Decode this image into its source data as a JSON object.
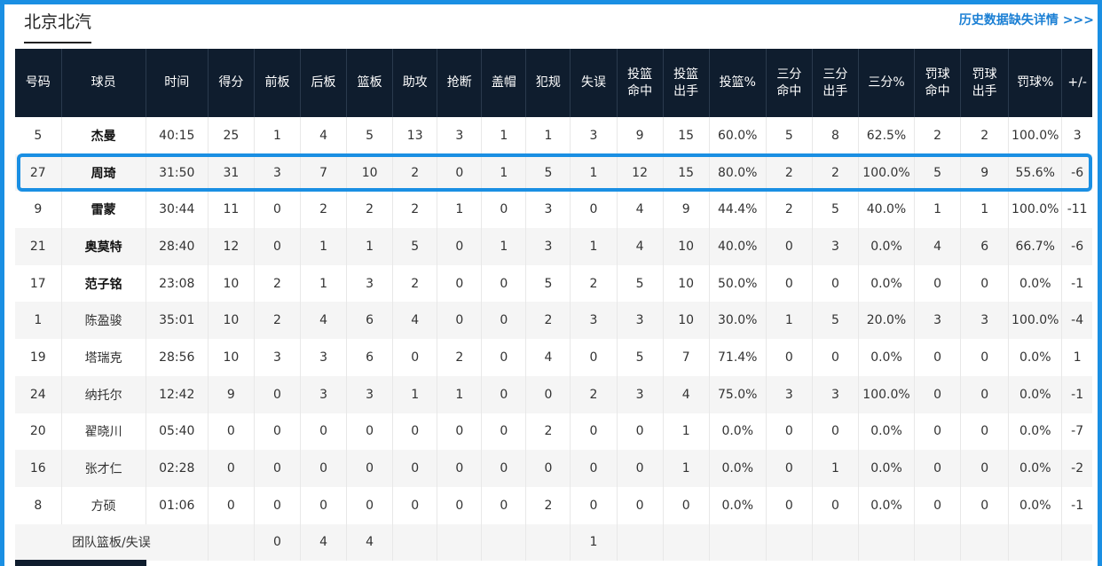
{
  "team": {
    "name": "北京北汽"
  },
  "history_link": {
    "label": "历史数据缺失详情 >>>"
  },
  "table": {
    "headers": [
      "号码",
      "球员",
      "时间",
      "得分",
      "前板",
      "后板",
      "篮板",
      "助攻",
      "抢断",
      "盖帽",
      "犯规",
      "失误",
      "投篮\n命中",
      "投篮\n出手",
      "投篮%",
      "三分\n命中",
      "三分\n出手",
      "三分%",
      "罚球\n命中",
      "罚球\n出手",
      "罚球%",
      "+/-"
    ],
    "rows": [
      {
        "num": "5",
        "name": "杰曼",
        "starter": true,
        "time": "40:15",
        "pts": "25",
        "oreb": "1",
        "dreb": "4",
        "reb": "5",
        "ast": "13",
        "stl": "3",
        "blk": "1",
        "pf": "1",
        "to": "3",
        "fgm": "9",
        "fga": "15",
        "fgp": "60.0%",
        "tpm": "5",
        "tpa": "8",
        "tpp": "62.5%",
        "ftm": "2",
        "fta": "2",
        "ftp": "100.0%",
        "pm": "3"
      },
      {
        "num": "27",
        "name": "周琦",
        "starter": true,
        "time": "31:50",
        "pts": "31",
        "oreb": "3",
        "dreb": "7",
        "reb": "10",
        "ast": "2",
        "stl": "0",
        "blk": "1",
        "pf": "5",
        "to": "1",
        "fgm": "12",
        "fga": "15",
        "fgp": "80.0%",
        "tpm": "2",
        "tpa": "2",
        "tpp": "100.0%",
        "ftm": "5",
        "fta": "9",
        "ftp": "55.6%",
        "pm": "-6"
      },
      {
        "num": "9",
        "name": "雷蒙",
        "starter": true,
        "time": "30:44",
        "pts": "11",
        "oreb": "0",
        "dreb": "2",
        "reb": "2",
        "ast": "2",
        "stl": "1",
        "blk": "0",
        "pf": "3",
        "to": "0",
        "fgm": "4",
        "fga": "9",
        "fgp": "44.4%",
        "tpm": "2",
        "tpa": "5",
        "tpp": "40.0%",
        "ftm": "1",
        "fta": "1",
        "ftp": "100.0%",
        "pm": "-11"
      },
      {
        "num": "21",
        "name": "奥莫特",
        "starter": true,
        "time": "28:40",
        "pts": "12",
        "oreb": "0",
        "dreb": "1",
        "reb": "1",
        "ast": "5",
        "stl": "0",
        "blk": "1",
        "pf": "3",
        "to": "1",
        "fgm": "4",
        "fga": "10",
        "fgp": "40.0%",
        "tpm": "0",
        "tpa": "3",
        "tpp": "0.0%",
        "ftm": "4",
        "fta": "6",
        "ftp": "66.7%",
        "pm": "-6"
      },
      {
        "num": "17",
        "name": "范子铭",
        "starter": true,
        "time": "23:08",
        "pts": "10",
        "oreb": "2",
        "dreb": "1",
        "reb": "3",
        "ast": "2",
        "stl": "0",
        "blk": "0",
        "pf": "5",
        "to": "2",
        "fgm": "5",
        "fga": "10",
        "fgp": "50.0%",
        "tpm": "0",
        "tpa": "0",
        "tpp": "0.0%",
        "ftm": "0",
        "fta": "0",
        "ftp": "0.0%",
        "pm": "-1"
      },
      {
        "num": "1",
        "name": "陈盈骏",
        "starter": false,
        "time": "35:01",
        "pts": "10",
        "oreb": "2",
        "dreb": "4",
        "reb": "6",
        "ast": "4",
        "stl": "0",
        "blk": "0",
        "pf": "2",
        "to": "3",
        "fgm": "3",
        "fga": "10",
        "fgp": "30.0%",
        "tpm": "1",
        "tpa": "5",
        "tpp": "20.0%",
        "ftm": "3",
        "fta": "3",
        "ftp": "100.0%",
        "pm": "-4"
      },
      {
        "num": "19",
        "name": "塔瑞克",
        "starter": false,
        "time": "28:56",
        "pts": "10",
        "oreb": "3",
        "dreb": "3",
        "reb": "6",
        "ast": "0",
        "stl": "2",
        "blk": "0",
        "pf": "4",
        "to": "0",
        "fgm": "5",
        "fga": "7",
        "fgp": "71.4%",
        "tpm": "0",
        "tpa": "0",
        "tpp": "0.0%",
        "ftm": "0",
        "fta": "0",
        "ftp": "0.0%",
        "pm": "1"
      },
      {
        "num": "24",
        "name": "纳托尔",
        "starter": false,
        "time": "12:42",
        "pts": "9",
        "oreb": "0",
        "dreb": "3",
        "reb": "3",
        "ast": "1",
        "stl": "1",
        "blk": "0",
        "pf": "0",
        "to": "2",
        "fgm": "3",
        "fga": "4",
        "fgp": "75.0%",
        "tpm": "3",
        "tpa": "3",
        "tpp": "100.0%",
        "ftm": "0",
        "fta": "0",
        "ftp": "0.0%",
        "pm": "-1"
      },
      {
        "num": "20",
        "name": "翟晓川",
        "starter": false,
        "time": "05:40",
        "pts": "0",
        "oreb": "0",
        "dreb": "0",
        "reb": "0",
        "ast": "0",
        "stl": "0",
        "blk": "0",
        "pf": "2",
        "to": "0",
        "fgm": "0",
        "fga": "1",
        "fgp": "0.0%",
        "tpm": "0",
        "tpa": "0",
        "tpp": "0.0%",
        "ftm": "0",
        "fta": "0",
        "ftp": "0.0%",
        "pm": "-7"
      },
      {
        "num": "16",
        "name": "张才仁",
        "starter": false,
        "time": "02:28",
        "pts": "0",
        "oreb": "0",
        "dreb": "0",
        "reb": "0",
        "ast": "0",
        "stl": "0",
        "blk": "0",
        "pf": "0",
        "to": "0",
        "fgm": "0",
        "fga": "1",
        "fgp": "0.0%",
        "tpm": "0",
        "tpa": "1",
        "tpp": "0.0%",
        "ftm": "0",
        "fta": "0",
        "ftp": "0.0%",
        "pm": "-2"
      },
      {
        "num": "8",
        "name": "方硕",
        "starter": false,
        "time": "01:06",
        "pts": "0",
        "oreb": "0",
        "dreb": "0",
        "reb": "0",
        "ast": "0",
        "stl": "0",
        "blk": "0",
        "pf": "2",
        "to": "0",
        "fgm": "0",
        "fga": "0",
        "fgp": "0.0%",
        "tpm": "0",
        "tpa": "0",
        "tpp": "0.0%",
        "ftm": "0",
        "fta": "0",
        "ftp": "0.0%",
        "pm": "-1"
      }
    ],
    "team_row": {
      "label": "团队篮板/失误",
      "oreb": "0",
      "dreb": "4",
      "reb": "4",
      "to": "1"
    }
  },
  "highlight": {
    "color": "#1a8fe3"
  },
  "colors": {
    "header_bg": "#0f1d2e",
    "link": "#1a7fd4",
    "stripe": "#f5f5f5"
  }
}
